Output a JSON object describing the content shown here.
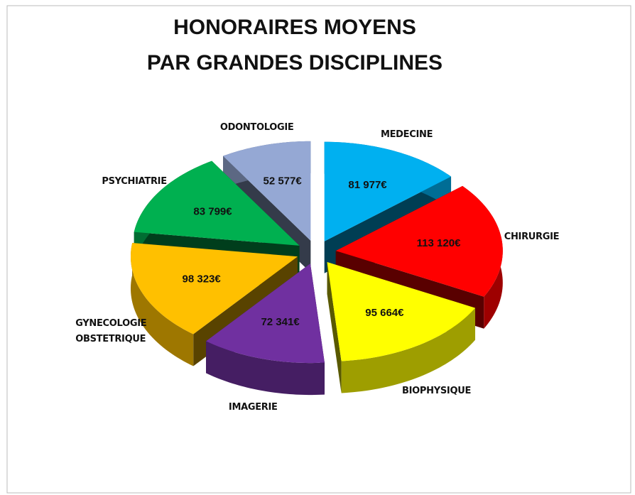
{
  "chart_data": {
    "type": "pie",
    "title": [
      "HONORAIRES MOYENS",
      "PAR GRANDES DISCIPLINES"
    ],
    "categories": [
      "MEDECINE",
      "CHIRURGIE",
      "BIOPHYSIQUE",
      "IMAGERIE",
      "GYNECOLOGIE OBSTETRIQUE",
      "PSYCHIATRIE",
      "ODONTOLOGIE"
    ],
    "values": [
      81977,
      113120,
      95664,
      72341,
      98323,
      83799,
      52577
    ],
    "value_labels": [
      "81 977€",
      "113 120€",
      "95 664€",
      "72 341€",
      "98 323€",
      "83 799€",
      "52 577€"
    ],
    "colors": [
      "#00b0f0",
      "#ff0000",
      "#ffff00",
      "#7030a0",
      "#ffc000",
      "#00b050",
      "#95a8d4"
    ]
  }
}
